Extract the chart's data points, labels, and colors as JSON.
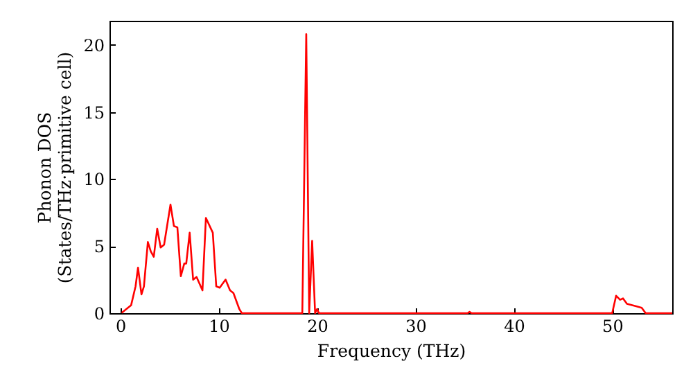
{
  "chart_data": {
    "type": "line",
    "xlabel": "Frequency (THz)",
    "ylabel": "Phonon DOS\n(States/THz·primitive cell)",
    "xlim": [
      -1.1,
      56.1
    ],
    "ylim": [
      0,
      21.8
    ],
    "xticks": [
      0,
      10,
      20,
      30,
      40,
      50
    ],
    "yticks": [
      0,
      5,
      10,
      15,
      20
    ],
    "grid": false,
    "series": [
      {
        "color": "#ff0000",
        "x": [
          0.14,
          1.1,
          1.55,
          1.8,
          2.15,
          2.4,
          2.8,
          3.1,
          3.4,
          3.75,
          4.1,
          4.45,
          5.1,
          5.45,
          5.8,
          6.15,
          6.5,
          6.7,
          7.05,
          7.4,
          7.75,
          8.35,
          8.7,
          9.4,
          9.75,
          10.1,
          10.7,
          11.15,
          11.5,
          12.1,
          12.35,
          18.5,
          18.9,
          19.2,
          19.5,
          19.8,
          20.0,
          20.2,
          35.3,
          35.5,
          35.7,
          50.0,
          50.4,
          50.8,
          51.1,
          51.5,
          52.5,
          53.0,
          53.4,
          56.1
        ],
        "values": [
          0.03,
          0.6,
          2.0,
          3.4,
          1.4,
          2.0,
          5.3,
          4.6,
          4.2,
          6.3,
          4.9,
          5.1,
          8.1,
          6.5,
          6.4,
          2.75,
          3.7,
          3.7,
          6.0,
          2.5,
          2.7,
          1.7,
          7.1,
          6.0,
          2.0,
          1.9,
          2.5,
          1.7,
          1.5,
          0.3,
          0,
          0,
          20.8,
          0,
          5.4,
          0,
          0.3,
          0,
          0,
          0.1,
          0,
          0,
          1.3,
          1.0,
          1.1,
          0.7,
          0.5,
          0.4,
          0,
          0
        ]
      }
    ]
  }
}
